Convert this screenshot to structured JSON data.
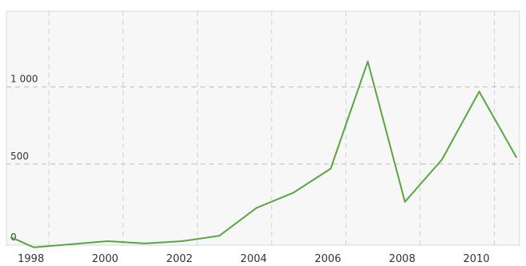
{
  "chart_data": {
    "type": "line",
    "title": "",
    "xlabel": "",
    "ylabel": "",
    "x": [
      1997,
      1998,
      1999,
      2000,
      2001,
      2002,
      2003,
      2004,
      2005,
      2006,
      2007,
      2008,
      2009,
      2010,
      2011
    ],
    "x_ticks": [
      "1998",
      "2000",
      "2002",
      "2004",
      "2006",
      "2008",
      "2010"
    ],
    "y_ticks": [
      "0",
      "500",
      "1 000"
    ],
    "y_tick_values": [
      0,
      500,
      1000
    ],
    "ylim": [
      0,
      1420
    ],
    "grid": true,
    "legend": "none",
    "series": [
      {
        "color": "#5aa640",
        "values": [
          25,
          -40,
          -20,
          0,
          -15,
          0,
          35,
          215,
          315,
          470,
          1165,
          255,
          530,
          970,
          545
        ]
      }
    ]
  }
}
